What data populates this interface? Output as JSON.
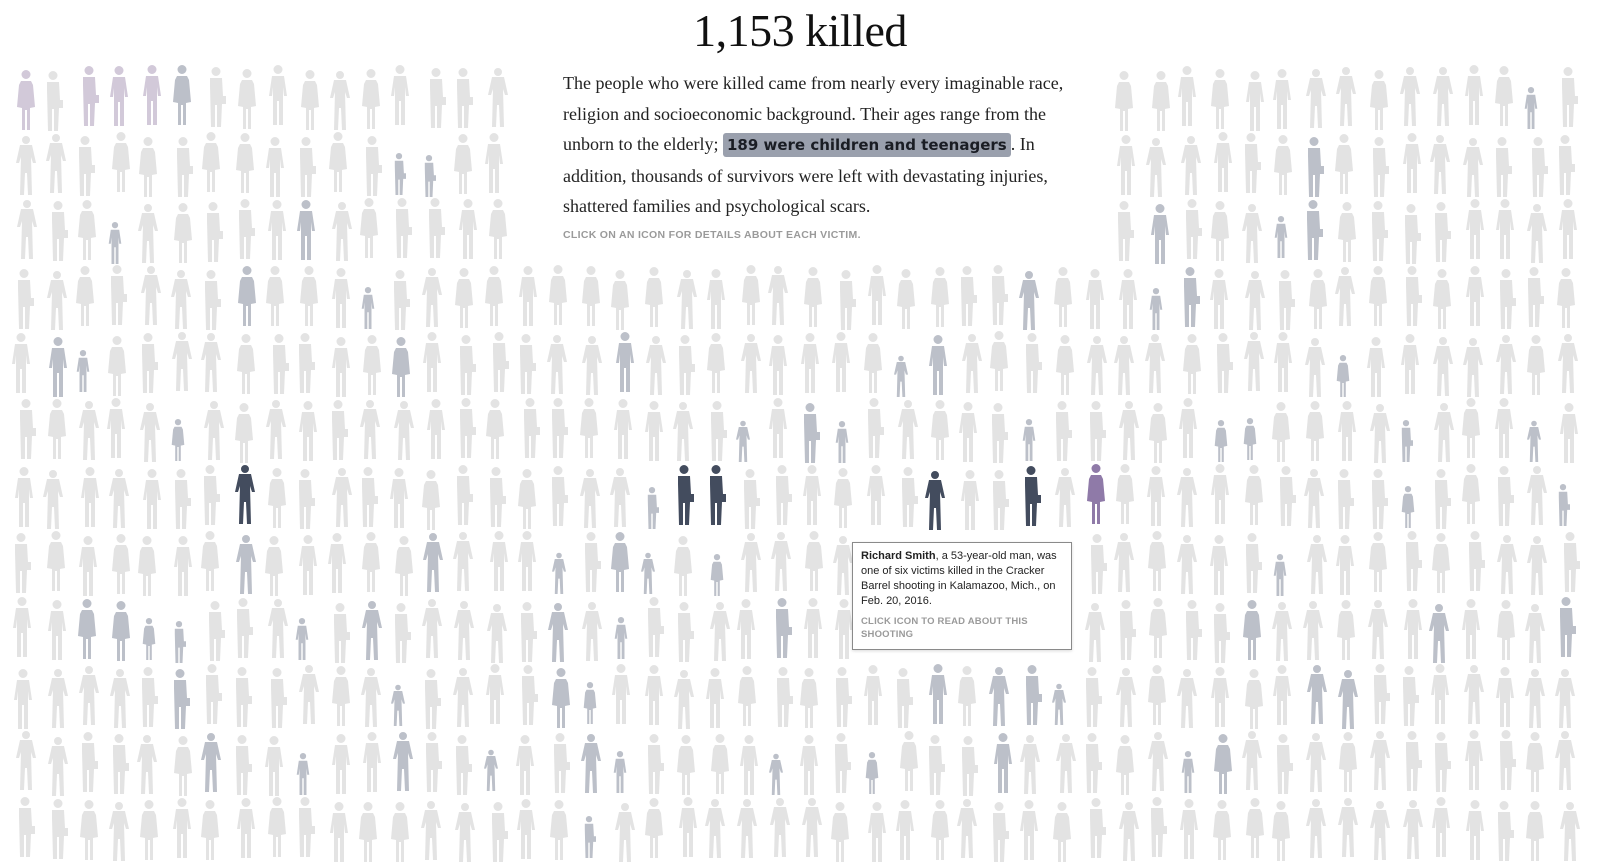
{
  "headline": "1,153 killed",
  "intro": {
    "text_before": "The people who were killed came from nearly every imaginable race, religion and socioeconomic background. Their ages range from the unborn to the elderly; ",
    "highlight": "189 were children and teenagers",
    "text_after": ". In addition, thousands of survivors were left with devastating injuries, shattered families and psychological scars.",
    "instruction": "CLICK ON AN ICON FOR DETAILS ABOUT EACH VICTIM."
  },
  "tooltip": {
    "name": "Richard Smith",
    "description": ", a 53-year-old man, was one of six victims killed in the Cracker Barrel shooting in Kalamazoo, Mich., on Feb. 20, 2016.",
    "cta": "CLICK ICON TO READ ABOUT THIS SHOOTING"
  },
  "colors": {
    "default_figure": "#e3e3e3",
    "child_figure": "#bcc0c9",
    "selected_incident": "#434c5e",
    "hover_figure": "#8f7aa8",
    "lavender_figure": "#d2c9d9",
    "highlight_bg": "#9aa0ad"
  },
  "figure_icon": "person-silhouette-icon"
}
